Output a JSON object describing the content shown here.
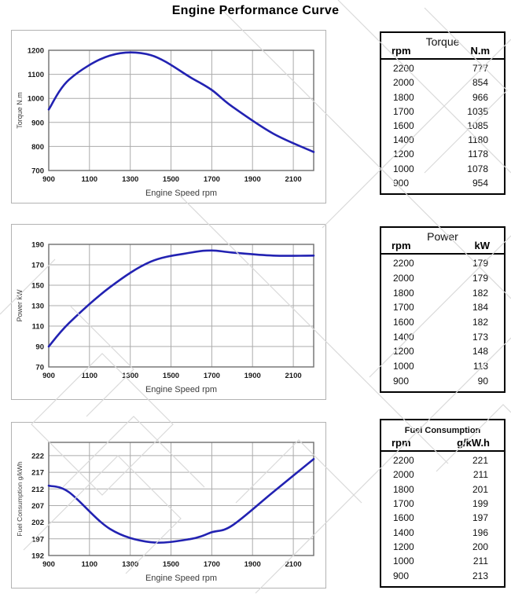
{
  "page": {
    "title": "Engine Performance Curve"
  },
  "colors": {
    "curve": "#2222b2",
    "grid": "#ababab",
    "plot_border": "#6f6f6f",
    "box_border": "#b3b3b3",
    "table_border": "#000000",
    "axis_tick_text": "#1a1a1a",
    "axis_title_text": "#3c3c3c",
    "watermark": "#dadada",
    "background": "#ffffff"
  },
  "chart_data": [
    {
      "type": "line",
      "title": "",
      "xlabel": "Engine Speed rpm",
      "ylabel": "Torque N.m",
      "x": [
        900,
        1000,
        1200,
        1400,
        1600,
        1700,
        1800,
        2000,
        2200
      ],
      "y": [
        954,
        1078,
        1178,
        1180,
        1085,
        1035,
        966,
        854,
        777
      ],
      "xlim": [
        900,
        2200
      ],
      "ylim": [
        700,
        1200
      ],
      "xticks": [
        900,
        1100,
        1300,
        1500,
        1700,
        1900,
        2100
      ],
      "yticks": [
        700,
        800,
        900,
        1000,
        1100,
        1200
      ],
      "grid": true,
      "legend": "none"
    },
    {
      "type": "line",
      "title": "",
      "xlabel": "Engine Speed rpm",
      "ylabel": "Power kW",
      "x": [
        900,
        1000,
        1200,
        1400,
        1600,
        1700,
        1800,
        2000,
        2200
      ],
      "y": [
        90,
        113,
        148,
        173,
        182,
        184,
        182,
        179,
        179
      ],
      "xlim": [
        900,
        2200
      ],
      "ylim": [
        70,
        190
      ],
      "xticks": [
        900,
        1100,
        1300,
        1500,
        1700,
        1900,
        2100
      ],
      "yticks": [
        70,
        90,
        110,
        130,
        150,
        170,
        190
      ],
      "grid": true,
      "legend": "none"
    },
    {
      "type": "line",
      "title": "",
      "xlabel": "Engine Speed rpm",
      "ylabel": "Fuel Consumption g/kWh",
      "x": [
        900,
        1000,
        1200,
        1400,
        1600,
        1700,
        1800,
        2000,
        2200
      ],
      "y": [
        213,
        211,
        200,
        196,
        197,
        199,
        201,
        211,
        221
      ],
      "xlim": [
        900,
        2200
      ],
      "ylim": [
        192,
        226
      ],
      "xticks": [
        900,
        1100,
        1300,
        1500,
        1700,
        1900,
        2100
      ],
      "yticks": [
        192,
        197,
        202,
        207,
        212,
        217,
        222
      ],
      "grid": true,
      "legend": "none"
    }
  ],
  "tables": [
    {
      "title": "Torque",
      "headers": [
        "rpm",
        "N.m"
      ],
      "rows": [
        [
          "2200",
          "777"
        ],
        [
          "2000",
          "854"
        ],
        [
          "1800",
          "966"
        ],
        [
          "1700",
          "1035"
        ],
        [
          "1600",
          "1085"
        ],
        [
          "1400",
          "1180"
        ],
        [
          "1200",
          "1178"
        ],
        [
          "1000",
          "1078"
        ],
        [
          "900",
          "954"
        ]
      ]
    },
    {
      "title": "Power",
      "headers": [
        "rpm",
        "kW"
      ],
      "rows": [
        [
          "2200",
          "179"
        ],
        [
          "2000",
          "179"
        ],
        [
          "1800",
          "182"
        ],
        [
          "1700",
          "184"
        ],
        [
          "1600",
          "182"
        ],
        [
          "1400",
          "173"
        ],
        [
          "1200",
          "148"
        ],
        [
          "1000",
          "113"
        ],
        [
          "900",
          "90"
        ]
      ]
    },
    {
      "title": "Fuel Consumption",
      "headers": [
        "rpm",
        "g/kW.h"
      ],
      "rows": [
        [
          "2200",
          "221"
        ],
        [
          "2000",
          "211"
        ],
        [
          "1800",
          "201"
        ],
        [
          "1700",
          "199"
        ],
        [
          "1600",
          "197"
        ],
        [
          "1400",
          "196"
        ],
        [
          "1200",
          "200"
        ],
        [
          "1000",
          "211"
        ],
        [
          "900",
          "213"
        ]
      ]
    }
  ]
}
